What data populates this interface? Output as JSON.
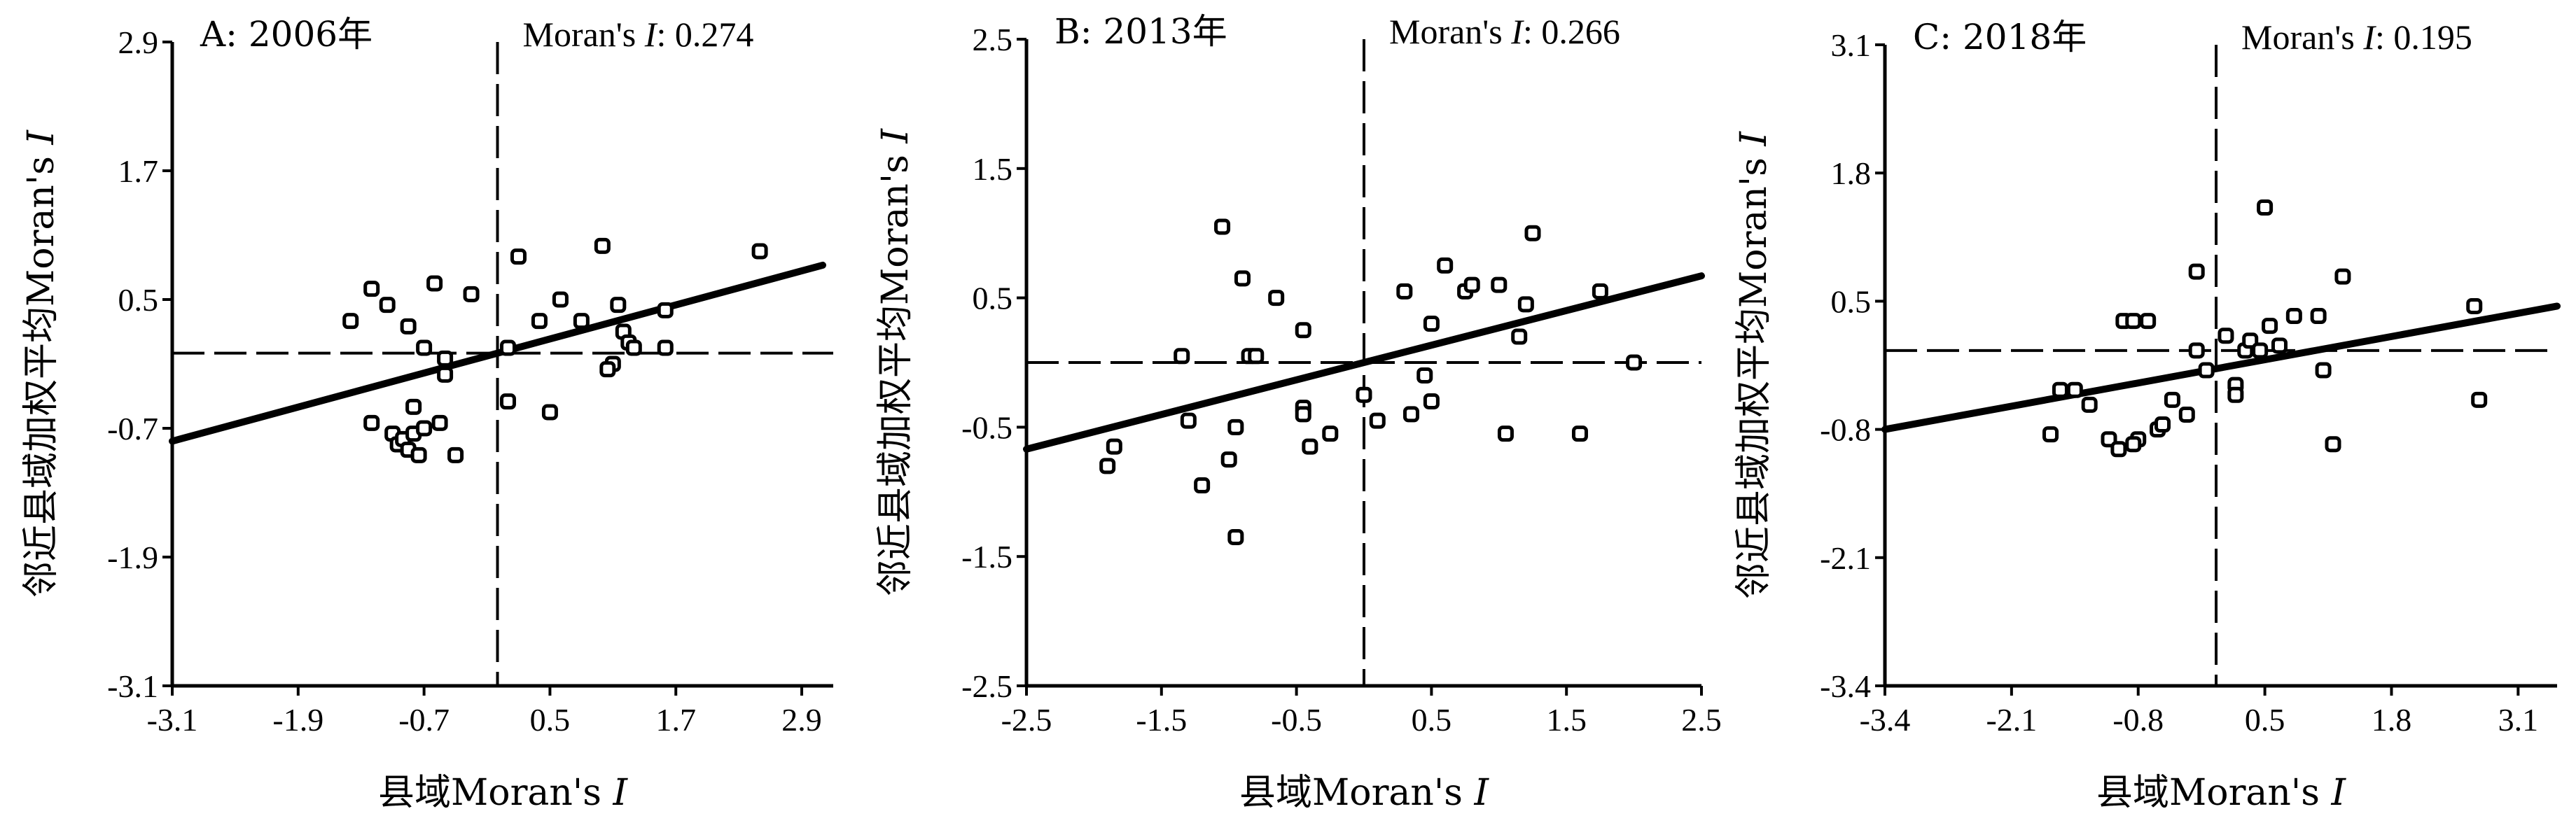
{
  "chart_data": [
    {
      "type": "scatter",
      "title": "A: 2006年",
      "annotation": {
        "label": "Moran's ",
        "italic": "I",
        "value": ": 0.274"
      },
      "xlabel": {
        "text": "县域Moran's ",
        "italic": "I"
      },
      "ylabel": {
        "text": "邻近县域加权平均Moran's ",
        "italic": "I"
      },
      "xlim": [
        -3.1,
        3.2
      ],
      "ylim": [
        -3.1,
        2.9
      ],
      "xticks": [
        "-3.1",
        "-1.9",
        "-0.7",
        "0.5",
        "1.7",
        "2.9"
      ],
      "yticks": [
        "-3.1",
        "-1.9",
        "-0.7",
        "0.5",
        "1.7",
        "2.9"
      ],
      "x_ref": 0.0,
      "y_ref": 0.0,
      "points": [
        [
          -1.4,
          0.3
        ],
        [
          -1.2,
          0.6
        ],
        [
          -1.05,
          0.45
        ],
        [
          -0.85,
          0.25
        ],
        [
          -0.6,
          0.65
        ],
        [
          -0.25,
          0.55
        ],
        [
          0.2,
          0.9
        ],
        [
          0.4,
          0.3
        ],
        [
          0.6,
          0.5
        ],
        [
          0.8,
          0.3
        ],
        [
          1.0,
          1.0
        ],
        [
          1.15,
          0.45
        ],
        [
          1.6,
          0.4
        ],
        [
          2.5,
          0.95
        ],
        [
          -0.7,
          0.05
        ],
        [
          -0.5,
          -0.05
        ],
        [
          0.1,
          0.05
        ],
        [
          1.2,
          0.2
        ],
        [
          1.25,
          0.1
        ],
        [
          1.3,
          0.05
        ],
        [
          1.1,
          -0.1
        ],
        [
          1.6,
          0.05
        ],
        [
          1.05,
          -0.15
        ],
        [
          -0.5,
          -0.2
        ],
        [
          -1.2,
          -0.65
        ],
        [
          -1.0,
          -0.75
        ],
        [
          -0.95,
          -0.85
        ],
        [
          -0.9,
          -0.8
        ],
        [
          -0.85,
          -0.9
        ],
        [
          -0.8,
          -0.75
        ],
        [
          -0.75,
          -0.95
        ],
        [
          -0.7,
          -0.7
        ],
        [
          -0.55,
          -0.65
        ],
        [
          -0.4,
          -0.95
        ],
        [
          -0.8,
          -0.5
        ],
        [
          0.1,
          -0.45
        ],
        [
          0.5,
          -0.55
        ]
      ],
      "trend": [
        [
          -3.1,
          -0.82
        ],
        [
          3.1,
          0.82
        ]
      ]
    },
    {
      "type": "scatter",
      "title": "B: 2013年",
      "annotation": {
        "label": "Moran's ",
        "italic": "I",
        "value": ": 0.266"
      },
      "xlabel": {
        "text": "县域Moran's ",
        "italic": "I"
      },
      "ylabel": {
        "text": "邻近县域加权平均Moran's ",
        "italic": "I"
      },
      "xlim": [
        -2.5,
        2.5
      ],
      "ylim": [
        -2.5,
        2.5
      ],
      "xticks": [
        "-2.5",
        "-1.5",
        "-0.5",
        "0.5",
        "1.5",
        "2.5"
      ],
      "yticks": [
        "-2.5",
        "-1.5",
        "-0.5",
        "0.5",
        "1.5",
        "2.5"
      ],
      "x_ref": 0.0,
      "y_ref": 0.0,
      "points": [
        [
          -1.85,
          -0.65
        ],
        [
          -1.9,
          -0.8
        ],
        [
          -1.35,
          0.05
        ],
        [
          -1.3,
          -0.45
        ],
        [
          -1.2,
          -0.95
        ],
        [
          -1.05,
          1.05
        ],
        [
          -1.0,
          -0.75
        ],
        [
          -0.95,
          -1.35
        ],
        [
          -0.9,
          0.65
        ],
        [
          -0.85,
          0.05
        ],
        [
          -0.8,
          0.05
        ],
        [
          -0.95,
          -0.5
        ],
        [
          -0.65,
          0.5
        ],
        [
          -0.45,
          0.25
        ],
        [
          -0.45,
          -0.35
        ],
        [
          -0.45,
          -0.4
        ],
        [
          -0.4,
          -0.65
        ],
        [
          -0.25,
          -0.55
        ],
        [
          0.0,
          -0.25
        ],
        [
          0.1,
          -0.45
        ],
        [
          0.3,
          0.55
        ],
        [
          0.35,
          -0.4
        ],
        [
          0.45,
          -0.1
        ],
        [
          0.5,
          -0.3
        ],
        [
          0.5,
          0.3
        ],
        [
          0.6,
          0.75
        ],
        [
          0.75,
          0.55
        ],
        [
          0.8,
          0.6
        ],
        [
          1.0,
          0.6
        ],
        [
          1.05,
          -0.55
        ],
        [
          1.15,
          0.2
        ],
        [
          1.2,
          0.45
        ],
        [
          1.25,
          1.0
        ],
        [
          1.6,
          -0.55
        ],
        [
          1.75,
          0.55
        ],
        [
          2.0,
          0.0
        ]
      ],
      "trend": [
        [
          -2.5,
          -0.67
        ],
        [
          2.5,
          0.67
        ]
      ]
    },
    {
      "type": "scatter",
      "title": "C: 2018年",
      "annotation": {
        "label": "Moran's ",
        "italic": "I",
        "value": ": 0.195"
      },
      "xlabel": {
        "text": "县域Moran's ",
        "italic": "I"
      },
      "ylabel": {
        "text": "邻近县域加权平均Moran's ",
        "italic": "I"
      },
      "xlim": [
        -3.4,
        3.5
      ],
      "ylim": [
        -3.4,
        3.1
      ],
      "xticks": [
        "-3.4",
        "-2.1",
        "-0.8",
        "0.5",
        "1.8",
        "3.1"
      ],
      "yticks": [
        "-3.4",
        "-2.1",
        "-0.8",
        "0.5",
        "1.8",
        "3.1"
      ],
      "x_ref": 0.0,
      "y_ref": 0.0,
      "points": [
        [
          -1.6,
          -0.4
        ],
        [
          -1.45,
          -0.4
        ],
        [
          -1.3,
          -0.55
        ],
        [
          -1.1,
          -0.9
        ],
        [
          -1.0,
          -1.0
        ],
        [
          -0.95,
          0.3
        ],
        [
          -0.85,
          0.3
        ],
        [
          -0.7,
          0.3
        ],
        [
          -0.6,
          -0.8
        ],
        [
          -0.55,
          -0.75
        ],
        [
          -0.45,
          -0.5
        ],
        [
          -0.3,
          -0.65
        ],
        [
          -0.2,
          0.8
        ],
        [
          -0.2,
          0.0
        ],
        [
          -0.1,
          -0.2
        ],
        [
          0.1,
          0.15
        ],
        [
          0.2,
          -0.35
        ],
        [
          0.2,
          -0.45
        ],
        [
          0.3,
          0.0
        ],
        [
          0.35,
          0.1
        ],
        [
          0.45,
          0.0
        ],
        [
          0.5,
          1.45
        ],
        [
          0.55,
          0.25
        ],
        [
          0.65,
          0.05
        ],
        [
          0.8,
          0.35
        ],
        [
          1.05,
          0.35
        ],
        [
          1.1,
          -0.2
        ],
        [
          1.2,
          -0.95
        ],
        [
          1.3,
          0.75
        ],
        [
          2.65,
          0.45
        ],
        [
          2.7,
          -0.5
        ],
        [
          -1.7,
          -0.85
        ],
        [
          -0.8,
          -0.9
        ],
        [
          -0.85,
          -0.95
        ]
      ],
      "trend": [
        [
          -3.4,
          -0.8
        ],
        [
          3.5,
          0.45
        ]
      ]
    }
  ]
}
